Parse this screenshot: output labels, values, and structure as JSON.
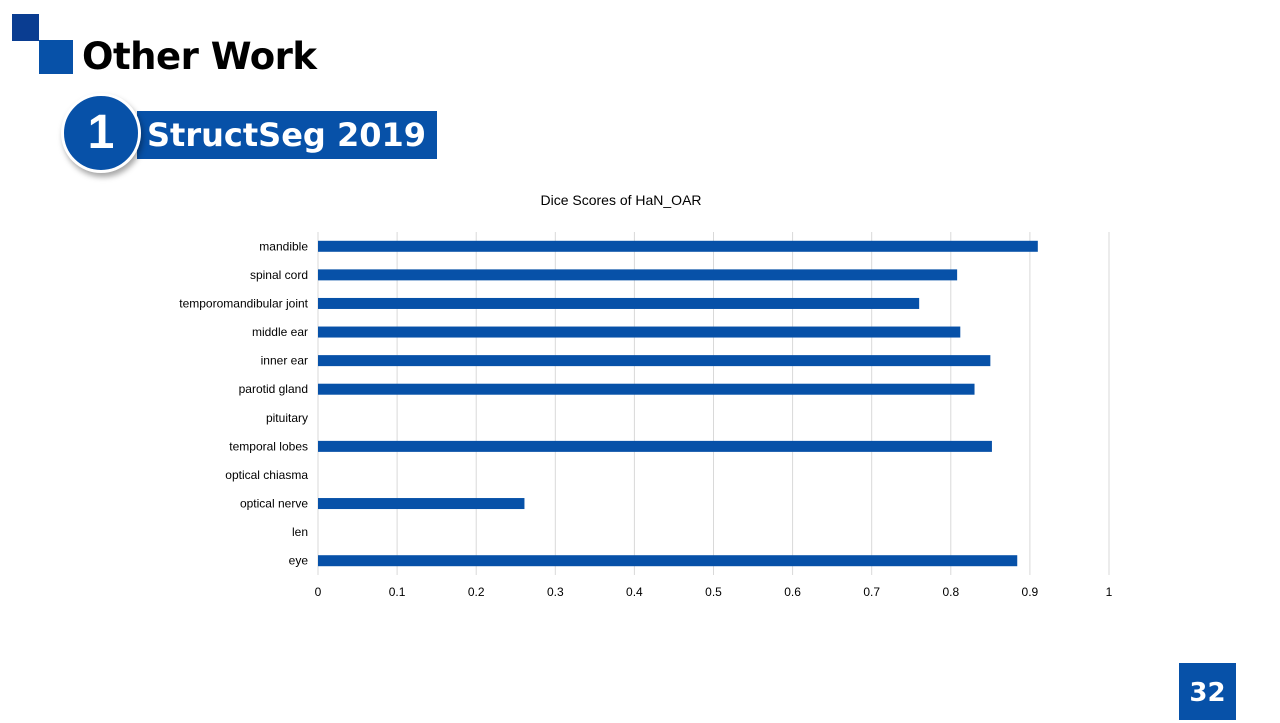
{
  "slide": {
    "title": "Other Work",
    "section_number": "1",
    "section_title": "StructSeg 2019",
    "page_number": "32"
  },
  "colors": {
    "brand_blue": "#0751a8",
    "brand_dark": "#0a3d91",
    "bar": "#0751a8",
    "grid": "#d9d9d9"
  },
  "chart_data": {
    "type": "bar",
    "orientation": "horizontal",
    "title": "Dice Scores of HaN_OAR",
    "xlabel": "",
    "ylabel": "",
    "categories": [
      "mandible",
      "spinal cord",
      "temporomandibular joint",
      "middle ear",
      "inner ear",
      "parotid gland",
      "pituitary",
      "temporal lobes",
      "optical chiasma",
      "optical nerve",
      "len",
      "eye"
    ],
    "values": [
      0.91,
      0.808,
      0.76,
      0.812,
      0.85,
      0.83,
      0,
      0.852,
      0,
      0.261,
      0,
      0.884
    ],
    "xlim": [
      0,
      1
    ],
    "xticks": [
      "0",
      "0.1",
      "0.2",
      "0.3",
      "0.4",
      "0.5",
      "0.6",
      "0.7",
      "0.8",
      "0.9",
      "1"
    ],
    "grid": true,
    "legend": "none"
  }
}
